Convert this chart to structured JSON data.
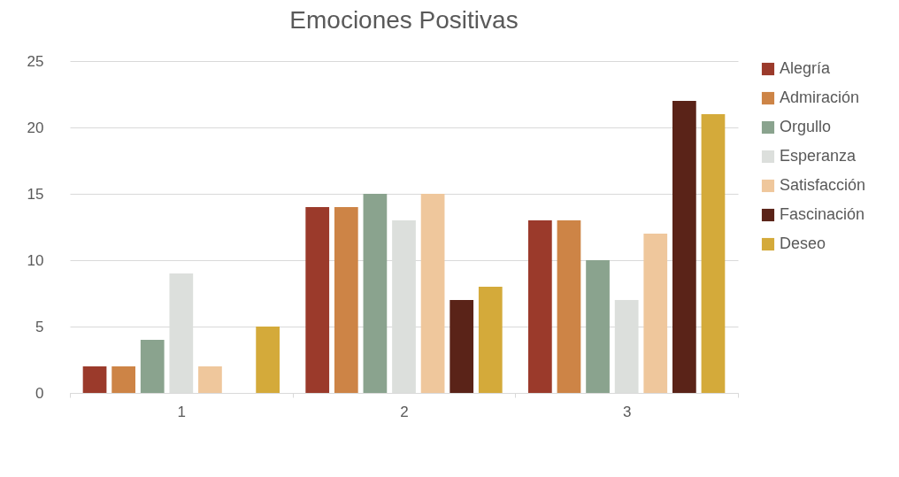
{
  "chart_data": {
    "type": "bar",
    "title": "Emociones Positivas",
    "categories": [
      "1",
      "2",
      "3"
    ],
    "series": [
      {
        "name": "Alegría",
        "color": "#9b3a2b",
        "values": [
          2,
          14,
          13
        ]
      },
      {
        "name": "Admiración",
        "color": "#cd8446",
        "values": [
          2,
          14,
          13
        ]
      },
      {
        "name": "Orgullo",
        "color": "#8aa38e",
        "values": [
          4,
          15,
          10
        ]
      },
      {
        "name": "Esperanza",
        "color": "#dcdfdc",
        "values": [
          9,
          13,
          7
        ]
      },
      {
        "name": "Satisfacción",
        "color": "#efc79c",
        "values": [
          2,
          15,
          12
        ]
      },
      {
        "name": "Fascinación",
        "color": "#5a2318",
        "values": [
          0,
          7,
          22
        ]
      },
      {
        "name": "Deseo",
        "color": "#d4aa3a",
        "values": [
          5,
          8,
          21
        ]
      }
    ],
    "ylim": [
      0,
      25
    ],
    "yticks": [
      0,
      5,
      10,
      15,
      20,
      25
    ],
    "grid": "y",
    "legend": "right"
  }
}
